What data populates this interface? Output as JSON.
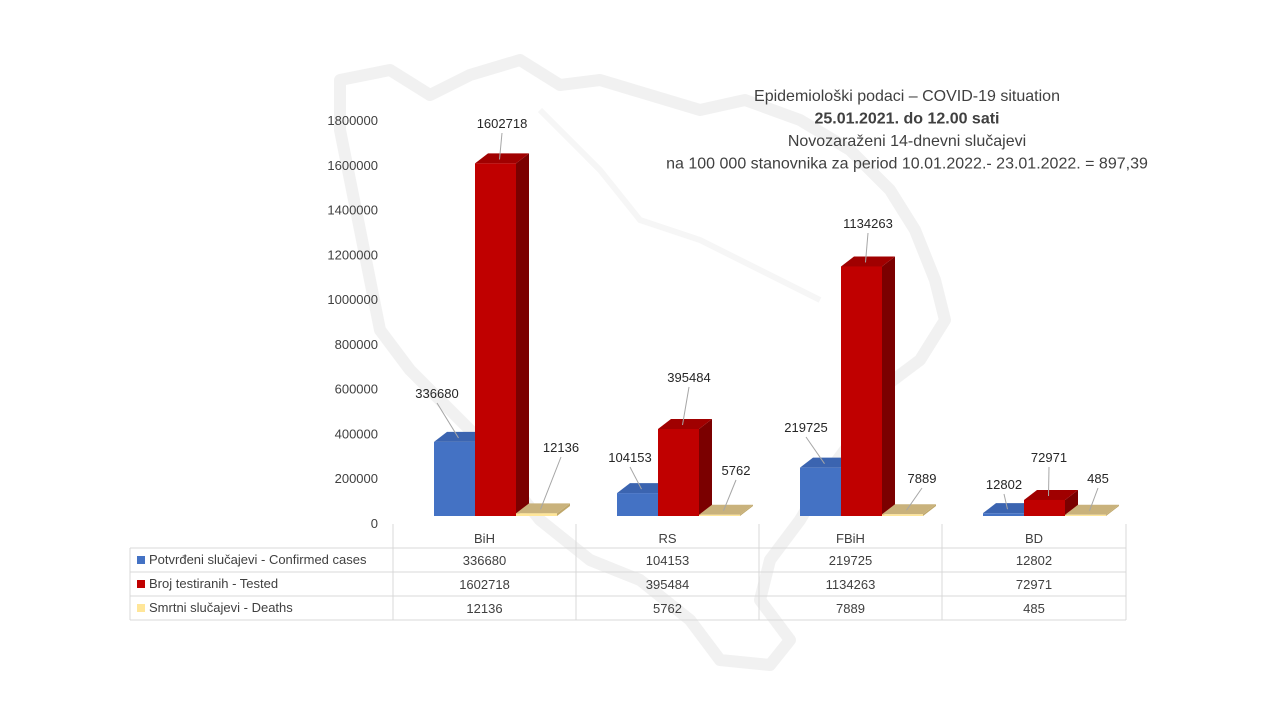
{
  "chart_data": {
    "type": "bar",
    "style": "3d-clustered-column",
    "title_lines": [
      "Epidemiološki podaci – COVID-19 situation",
      "25.01.2021. do 12.00 sati",
      "Novozaraženi 14-dnevni slučajevi",
      "na 100 000 stanovnika za period 10.01.2022.- 23.01.2022. = 897,39"
    ],
    "bold_title_line": 1,
    "categories": [
      "BiH",
      "RS",
      "FBiH",
      "BD"
    ],
    "series": [
      {
        "name": "Potvrđeni slučajevi - Confirmed cases",
        "values": [
          336680,
          104153,
          219725,
          12802
        ],
        "color": "#4472C4",
        "side": "#2F5597",
        "top": "#3B64B0"
      },
      {
        "name": "Broj testiranih - Tested",
        "values": [
          1602718,
          395484,
          1134263,
          72971
        ],
        "color": "#C00000",
        "side": "#7B0000",
        "top": "#A00000"
      },
      {
        "name": "Smrtni slučajevi - Deaths",
        "values": [
          12136,
          5762,
          7889,
          485
        ],
        "color": "#FFE699",
        "side": "#BFA76A",
        "top": "#C9B27C"
      }
    ],
    "ylim": [
      0,
      1800000
    ],
    "yticks": [
      0,
      200000,
      400000,
      600000,
      800000,
      1000000,
      1200000,
      1400000,
      1600000,
      1800000
    ],
    "grid": false,
    "legend": "data-table"
  }
}
